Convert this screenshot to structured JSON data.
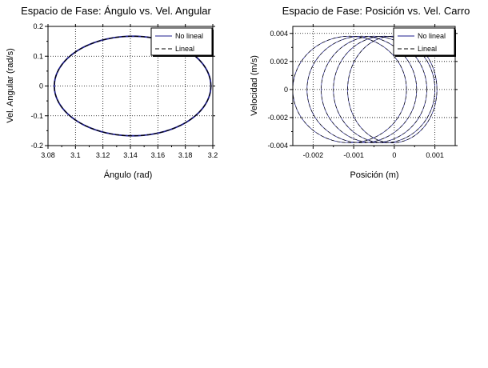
{
  "chart_data": [
    {
      "type": "line",
      "title": "Espacio de Fase: Ángulo vs. Vel. Angular",
      "xlabel": "Ángulo (rad)",
      "ylabel": "Vel. Angular (rad/s)",
      "xlim": [
        3.08,
        3.2
      ],
      "ylim": [
        -0.2,
        0.2
      ],
      "xticks": [
        "3.08",
        "3.1",
        "3.12",
        "3.14",
        "3.16",
        "3.18",
        "3.2"
      ],
      "yticks": [
        "0.2",
        "0.1",
        "0",
        "-0.1",
        "-0.2"
      ],
      "grid": true,
      "legend_position": "top-right",
      "series": [
        {
          "name": "No lineal",
          "style": "solid",
          "color": "#1f1f8f",
          "shape": "ellipse",
          "x_center": 3.1416,
          "x_amplitude": 0.057,
          "y_amplitude": 0.167
        },
        {
          "name": "Lineal",
          "style": "dashed",
          "color": "#000000",
          "shape": "ellipse",
          "x_center": 3.1416,
          "x_amplitude": 0.057,
          "y_amplitude": 0.167
        }
      ]
    },
    {
      "type": "line",
      "title": "Espacio de Fase: Posición vs. Vel. Carro",
      "xlabel": "Posición (m)",
      "ylabel": "Velocidad (m/s)",
      "xlim": [
        -0.0025,
        0.0015
      ],
      "ylim": [
        -0.004,
        0.0045
      ],
      "xticks": [
        "-0.002",
        "-0.001",
        "0",
        "0.001"
      ],
      "yticks": [
        "0.004",
        "0.002",
        "0",
        "-0.002",
        "-0.004"
      ],
      "grid": true,
      "legend_position": "top-right",
      "series": [
        {
          "name": "No lineal",
          "style": "solid",
          "color": "#1f1f8f",
          "loops": [
            {
              "x_center": -0.0011,
              "x_amplitude": 0.0014,
              "y_amplitude": 0.0038
            },
            {
              "x_center": -0.0008,
              "x_amplitude": 0.00135,
              "y_amplitude": 0.0038
            },
            {
              "x_center": -0.0005,
              "x_amplitude": 0.0013,
              "y_amplitude": 0.0038
            },
            {
              "x_center": -0.00025,
              "x_amplitude": 0.00125,
              "y_amplitude": 0.0038
            },
            {
              "x_center": -5e-05,
              "x_amplitude": 0.0011,
              "y_amplitude": 0.0038
            }
          ]
        },
        {
          "name": "Lineal",
          "style": "dashed",
          "color": "#000000",
          "loops": [
            {
              "x_center": -0.0011,
              "x_amplitude": 0.0014,
              "y_amplitude": 0.0038
            },
            {
              "x_center": -0.0008,
              "x_amplitude": 0.00135,
              "y_amplitude": 0.0038
            },
            {
              "x_center": -0.0005,
              "x_amplitude": 0.0013,
              "y_amplitude": 0.0038
            },
            {
              "x_center": -0.00025,
              "x_amplitude": 0.00125,
              "y_amplitude": 0.0038
            },
            {
              "x_center": -5e-05,
              "x_amplitude": 0.0011,
              "y_amplitude": 0.0038
            }
          ]
        }
      ]
    }
  ]
}
